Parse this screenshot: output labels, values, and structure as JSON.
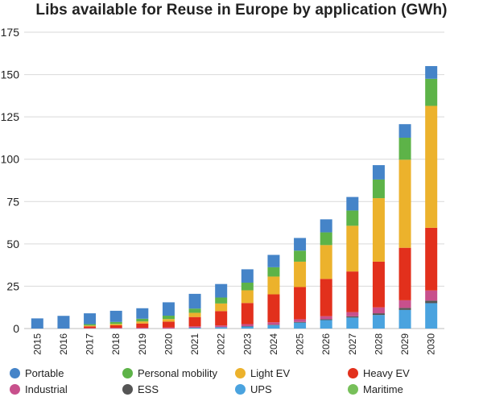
{
  "chart_data": {
    "type": "bar",
    "stacked": true,
    "title": "Libs available for Reuse in Europe by application (GWh)",
    "xlabel": "",
    "ylabel": "",
    "ylim": [
      0,
      175
    ],
    "yticks": [
      0,
      25,
      50,
      75,
      100,
      125,
      150,
      175
    ],
    "grid": true,
    "legend_position": "bottom",
    "categories": [
      "2015",
      "2016",
      "2017",
      "2018",
      "2019",
      "2020",
      "2021",
      "2022",
      "2023",
      "2024",
      "2025",
      "2026",
      "2027",
      "2028",
      "2029",
      "2030"
    ],
    "series": [
      {
        "name": "UPS",
        "color": "#4aa3df",
        "values": [
          0,
          0,
          0,
          0,
          0,
          0,
          0.5,
          0.8,
          1.2,
          2,
          3.5,
          5,
          6.5,
          8,
          11,
          15
        ]
      },
      {
        "name": "ESS",
        "color": "#555555",
        "values": [
          0,
          0,
          0,
          0,
          0,
          0,
          0,
          0,
          0.2,
          0.3,
          0.4,
          0.5,
          0.7,
          1,
          1.2,
          1.5
        ]
      },
      {
        "name": "Industrial",
        "color": "#c8508c",
        "values": [
          0,
          0,
          0.3,
          0.4,
          0.5,
          0.6,
          0.8,
          1,
          1.2,
          1.4,
          1.6,
          1.8,
          2.5,
          3.5,
          4.5,
          6
        ]
      },
      {
        "name": "Heavy EV",
        "color": "#e2301c",
        "values": [
          0,
          0,
          1,
          1.5,
          2.5,
          3.5,
          5.5,
          8.5,
          12.5,
          16.5,
          19,
          22,
          24,
          27,
          31,
          37
        ]
      },
      {
        "name": "Light EV",
        "color": "#ecb22c",
        "values": [
          0,
          0,
          0.5,
          0.8,
          1.2,
          1.5,
          2.5,
          4.5,
          7.5,
          10.5,
          15,
          20,
          27,
          37.5,
          52,
          72
        ]
      },
      {
        "name": "Personal mobility",
        "color": "#5db348",
        "values": [
          0,
          0,
          0.8,
          1.2,
          1.6,
          2,
          2.5,
          3.5,
          4.5,
          5.5,
          6.5,
          7.5,
          9,
          11,
          13,
          16
        ]
      },
      {
        "name": "Maritime",
        "color": "#77c05a",
        "values": [
          0,
          0,
          0,
          0,
          0,
          0,
          0,
          0,
          0,
          0,
          0,
          0,
          0,
          0,
          0,
          0
        ]
      },
      {
        "name": "Portable",
        "color": "#4584c8",
        "values": [
          6,
          7.5,
          6.4,
          6.6,
          6.2,
          7.9,
          8.7,
          8,
          7.9,
          7.3,
          7.5,
          7.7,
          8,
          8.5,
          8,
          7.5
        ]
      }
    ]
  },
  "legend": [
    {
      "label": "Portable",
      "color": "#4584c8"
    },
    {
      "label": "Personal mobility",
      "color": "#5db348"
    },
    {
      "label": "Light EV",
      "color": "#ecb22c"
    },
    {
      "label": "Heavy EV",
      "color": "#e2301c"
    },
    {
      "label": "Industrial",
      "color": "#c8508c"
    },
    {
      "label": "ESS",
      "color": "#555555"
    },
    {
      "label": "UPS",
      "color": "#4aa3df"
    },
    {
      "label": "Maritime",
      "color": "#77c05a"
    }
  ]
}
